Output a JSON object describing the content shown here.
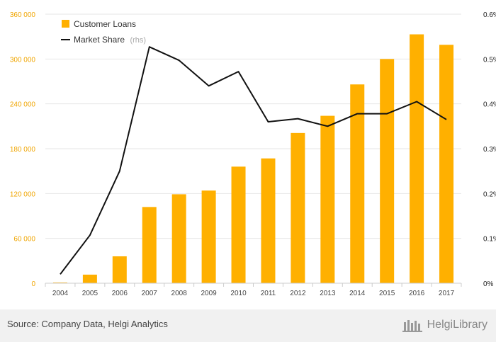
{
  "chart_data": {
    "type": "bar",
    "categories": [
      "2004",
      "2005",
      "2006",
      "2007",
      "2008",
      "2009",
      "2010",
      "2011",
      "2012",
      "2013",
      "2014",
      "2015",
      "2016",
      "2017"
    ],
    "series": [
      {
        "name": "Customer Loans",
        "type": "bar",
        "axis": "left",
        "color": "#ffb000",
        "values": [
          1000,
          11500,
          36000,
          102000,
          119000,
          124000,
          156000,
          167000,
          201000,
          224000,
          266000,
          300000,
          333000,
          319000
        ]
      },
      {
        "name": "Market Share",
        "axis_note": "(rhs)",
        "type": "line",
        "axis": "right",
        "color": "#111111",
        "values": [
          0.02,
          0.107,
          0.25,
          0.527,
          0.497,
          0.44,
          0.472,
          0.36,
          0.367,
          0.35,
          0.378,
          0.378,
          0.405,
          0.365
        ]
      }
    ],
    "left_axis": {
      "ylim": [
        0,
        360000
      ],
      "ticks": [
        0,
        60000,
        120000,
        180000,
        240000,
        300000,
        360000
      ],
      "tick_labels": [
        "0",
        "60 000",
        "120 000",
        "180 000",
        "240 000",
        "300 000",
        "360 000"
      ],
      "color": "#f0a500"
    },
    "right_axis": {
      "ylim": [
        0,
        0.6
      ],
      "ticks": [
        0,
        0.1,
        0.2,
        0.3,
        0.4,
        0.5,
        0.6
      ],
      "tick_labels": [
        "0%",
        "0.1%",
        "0.2%",
        "0.3%",
        "0.4%",
        "0.5%",
        "0.6%"
      ]
    },
    "grid": true,
    "legend_position": "top-left"
  },
  "footer": {
    "source": "Source: Company Data, Helgi Analytics",
    "brand": "HelgiLibrary"
  }
}
